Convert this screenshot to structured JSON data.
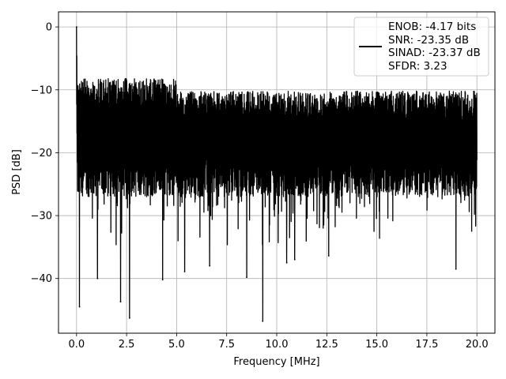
{
  "chart_data": {
    "type": "line",
    "xlabel": "Frequency [MHz]",
    "ylabel": "PSD [dB]",
    "xlim": [
      -0.9,
      20.9
    ],
    "ylim": [
      -48.7,
      2.4
    ],
    "x_range": [
      0,
      20
    ],
    "xticks": [
      0,
      2.5,
      5,
      7.5,
      10,
      12.5,
      15,
      17.5,
      20
    ],
    "xtick_labels": [
      "0.0",
      "2.5",
      "5.0",
      "7.5",
      "10.0",
      "12.5",
      "15.0",
      "17.5",
      "20.0"
    ],
    "yticks": [
      0,
      -10,
      -20,
      -30,
      -40
    ],
    "ytick_labels": [
      "0",
      "−10",
      "−20",
      "−30",
      "−40"
    ],
    "grid": true,
    "legend_position": "top-right",
    "series": [
      {
        "color": "#000000",
        "band_upper_approx": -9,
        "band_lower_approx": -27,
        "dc_peak": {
          "x": 0.0,
          "y": 0
        },
        "notable_dips": [
          {
            "x": 0.15,
            "y": -44.5
          },
          {
            "x": 2.2,
            "y": -43.7
          },
          {
            "x": 2.65,
            "y": -46.3
          },
          {
            "x": 4.3,
            "y": -40.2
          },
          {
            "x": 1.05,
            "y": -40
          },
          {
            "x": 5.4,
            "y": -38.9
          },
          {
            "x": 6.65,
            "y": -38
          },
          {
            "x": 8.5,
            "y": -39.8
          },
          {
            "x": 9.3,
            "y": -46.8
          },
          {
            "x": 10.5,
            "y": -37.5
          },
          {
            "x": 10.9,
            "y": -37
          },
          {
            "x": 12.6,
            "y": -36.4
          },
          {
            "x": 18.95,
            "y": -38.5
          }
        ]
      }
    ],
    "legend_entries": [
      "ENOB: -4.17 bits",
      "SNR: -23.35 dB",
      "SINAD: -23.37 dB",
      "SFDR: 3.23"
    ]
  }
}
